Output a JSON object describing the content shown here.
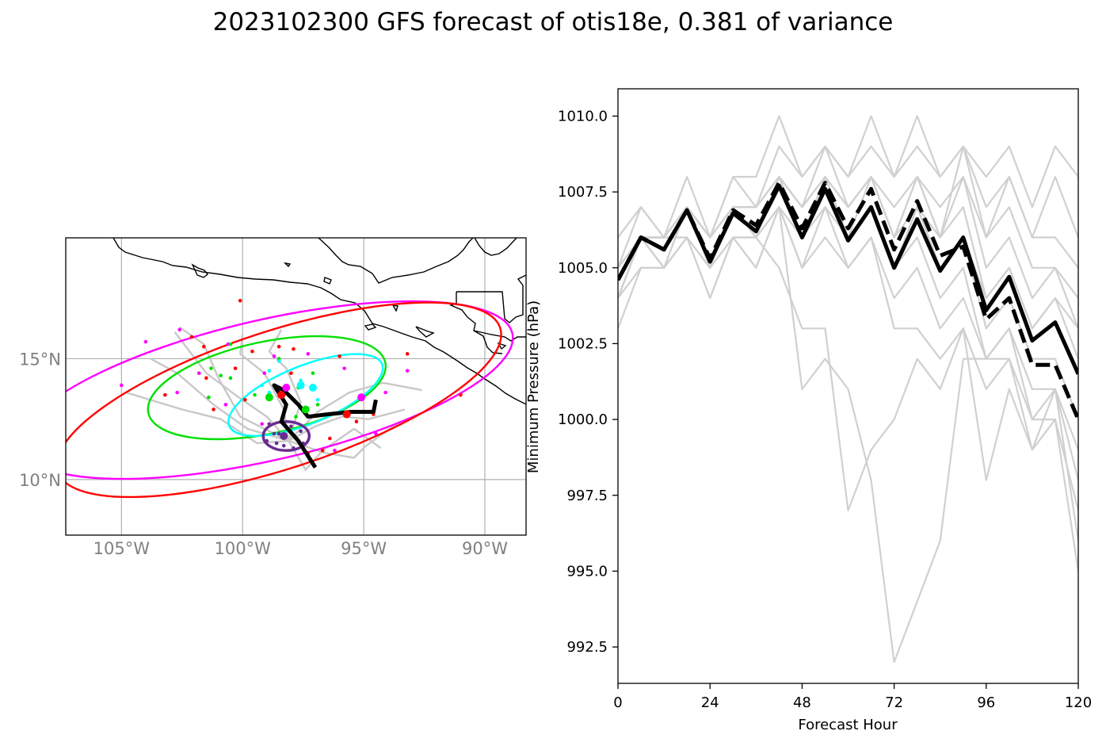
{
  "title": "2023102300 GFS forecast of otis18e, 0.381 of variance",
  "chart_data": [
    {
      "type": "map",
      "lon_range": [
        -107.3,
        -88.3
      ],
      "lat_range": [
        7.7,
        20.0
      ],
      "lat_ticks": [
        {
          "value": 15,
          "label": "15°N"
        },
        {
          "value": 10,
          "label": "10°N"
        }
      ],
      "lon_ticks": [
        {
          "value": -105,
          "label": "105°W"
        },
        {
          "value": -100,
          "label": "100°W"
        },
        {
          "value": -95,
          "label": "95°W"
        },
        {
          "value": -90,
          "label": "90°W"
        }
      ],
      "gridlines": true,
      "colors": {
        "red": "#ff0000",
        "magenta": "#ff00ff",
        "green": "#00e000",
        "cyan": "#00ffff",
        "purple": "#6a2c91",
        "track": "#000000",
        "members": "#c8c8c8"
      },
      "ellipses": [
        {
          "color": "magenta",
          "center": [
            -99.0,
            13.7
          ],
          "rx_deg": 10.4,
          "ry_deg": 2.9,
          "angle_deg": -13
        },
        {
          "color": "red",
          "center": [
            -98.5,
            13.3
          ],
          "rx_deg": 9.6,
          "ry_deg": 2.85,
          "angle_deg": -18
        },
        {
          "color": "green",
          "center": [
            -99.0,
            13.8
          ],
          "rx_deg": 5.0,
          "ry_deg": 1.9,
          "angle_deg": -12
        },
        {
          "color": "cyan",
          "center": [
            -97.4,
            13.5
          ],
          "rx_deg": 3.4,
          "ry_deg": 1.2,
          "angle_deg": -22
        },
        {
          "color": "purple",
          "center": [
            -98.2,
            11.8
          ],
          "rx_deg": 0.95,
          "ry_deg": 0.6,
          "angle_deg": 0
        }
      ],
      "mean_track": [
        [
          -97.0,
          10.5
        ],
        [
          -97.7,
          11.6
        ],
        [
          -98.4,
          12.4
        ],
        [
          -98.2,
          13.1
        ],
        [
          -98.7,
          13.9
        ],
        [
          -98.3,
          13.7
        ],
        [
          -97.7,
          13.1
        ],
        [
          -97.3,
          12.6
        ],
        [
          -96.5,
          12.7
        ],
        [
          -95.5,
          12.8
        ],
        [
          -94.6,
          12.8
        ],
        [
          -94.5,
          13.3
        ]
      ],
      "member_tracks": [
        [
          [
            -98.1,
            11.6
          ],
          [
            -99.8,
            12.1
          ],
          [
            -101.2,
            13.1
          ],
          [
            -102.7,
            14.4
          ],
          [
            -103.8,
            15.0
          ]
        ],
        [
          [
            -98.1,
            11.6
          ],
          [
            -99.0,
            12.6
          ],
          [
            -100.3,
            13.5
          ],
          [
            -101.5,
            14.4
          ],
          [
            -102.8,
            16.1
          ]
        ],
        [
          [
            -98.1,
            11.6
          ],
          [
            -97.0,
            12.2
          ],
          [
            -95.9,
            12.6
          ],
          [
            -94.8,
            12.5
          ],
          [
            -93.3,
            12.9
          ]
        ],
        [
          [
            -98.1,
            11.6
          ],
          [
            -96.9,
            12.8
          ],
          [
            -95.6,
            13.6
          ],
          [
            -94.2,
            14.0
          ],
          [
            -92.6,
            13.7
          ]
        ],
        [
          [
            -98.1,
            11.6
          ],
          [
            -98.3,
            12.9
          ],
          [
            -99.1,
            14.4
          ],
          [
            -100.1,
            15.2
          ],
          [
            -100.0,
            16.0
          ]
        ],
        [
          [
            -98.1,
            11.6
          ],
          [
            -97.4,
            10.4
          ],
          [
            -96.7,
            11.2
          ],
          [
            -95.4,
            12.1
          ],
          [
            -94.3,
            11.3
          ]
        ],
        [
          [
            -98.1,
            11.6
          ],
          [
            -99.4,
            11.5
          ],
          [
            -100.9,
            12.5
          ],
          [
            -102.5,
            12.9
          ],
          [
            -104.8,
            13.6
          ]
        ],
        [
          [
            -98.1,
            11.6
          ],
          [
            -97.6,
            13.2
          ],
          [
            -98.2,
            14.6
          ],
          [
            -98.9,
            15.3
          ],
          [
            -98.4,
            16.2
          ]
        ],
        [
          [
            -98.1,
            11.6
          ],
          [
            -96.6,
            11.1
          ],
          [
            -95.4,
            10.9
          ],
          [
            -94.9,
            11.4
          ],
          [
            -93.5,
            12.4
          ]
        ],
        [
          [
            -98.1,
            11.6
          ],
          [
            -100.1,
            12.6
          ],
          [
            -101.0,
            14.2
          ],
          [
            -101.6,
            15.6
          ],
          [
            -102.6,
            16.3
          ]
        ]
      ],
      "points": {
        "red": [
          [
            -100.1,
            17.4
          ],
          [
            -101.6,
            15.5
          ],
          [
            -102.1,
            15.9
          ],
          [
            -99.6,
            15.3
          ],
          [
            -98.5,
            15.5
          ],
          [
            -97.9,
            15.4
          ],
          [
            -96.0,
            15.1
          ],
          [
            -93.2,
            15.2
          ],
          [
            -91.0,
            13.5
          ],
          [
            -94.6,
            12.7
          ],
          [
            -95.7,
            12.8
          ],
          [
            -96.7,
            11.2
          ],
          [
            -99.9,
            13.3
          ],
          [
            -101.2,
            12.9
          ],
          [
            -103.2,
            13.5
          ],
          [
            -101.5,
            14.2
          ],
          [
            -98.0,
            14.4
          ],
          [
            -96.4,
            11.7
          ],
          [
            -95.3,
            12.4
          ],
          [
            -98.3,
            13.5
          ],
          [
            -100.3,
            14.6
          ],
          [
            -97.3,
            11.1
          ]
        ],
        "magenta": [
          [
            -104.0,
            15.7
          ],
          [
            -102.6,
            16.2
          ],
          [
            -105.0,
            13.9
          ],
          [
            -101.8,
            14.4
          ],
          [
            -100.6,
            15.6
          ],
          [
            -98.7,
            15.1
          ],
          [
            -95.8,
            14.6
          ],
          [
            -94.1,
            13.6
          ],
          [
            -93.2,
            14.5
          ],
          [
            -96.2,
            11.2
          ],
          [
            -99.2,
            12.3
          ],
          [
            -100.7,
            13.1
          ],
          [
            -102.7,
            13.6
          ],
          [
            -94.8,
            12.8
          ],
          [
            -98.2,
            13.8
          ],
          [
            -97.3,
            15.2
          ],
          [
            -99.1,
            14.4
          ],
          [
            -94.5,
            11.9
          ],
          [
            -95.1,
            13.4
          ]
        ],
        "green": [
          [
            -101.3,
            14.6
          ],
          [
            -100.9,
            14.3
          ],
          [
            -101.4,
            13.4
          ],
          [
            -100.5,
            15.6
          ],
          [
            -98.5,
            15.0
          ],
          [
            -97.8,
            12.6
          ],
          [
            -96.9,
            13.1
          ],
          [
            -97.1,
            14.4
          ],
          [
            -99.5,
            13.5
          ],
          [
            -100.5,
            14.2
          ],
          [
            -97.7,
            13.8
          ],
          [
            -98.9,
            13.4
          ],
          [
            -97.4,
            12.9
          ]
        ],
        "cyan": [
          [
            -98.9,
            14.5
          ],
          [
            -98.4,
            13.4
          ],
          [
            -97.6,
            13.9
          ],
          [
            -97.1,
            13.8
          ],
          [
            -98.9,
            13.6
          ],
          [
            -97.6,
            14.1
          ],
          [
            -96.9,
            13.3
          ],
          [
            -98.5,
            14.9
          ],
          [
            -99.2,
            13.9
          ]
        ],
        "purple": [
          [
            -98.6,
            11.5
          ],
          [
            -97.8,
            11.7
          ],
          [
            -98.0,
            12.2
          ],
          [
            -98.7,
            11.9
          ],
          [
            -99.0,
            11.6
          ],
          [
            -97.6,
            12.0
          ],
          [
            -98.3,
            11.4
          ],
          [
            -98.9,
            12.3
          ],
          [
            -97.9,
            11.3
          ],
          [
            -98.5,
            11.9
          ],
          [
            -97.5,
            11.5
          ]
        ],
        "mean_positions": [
          {
            "color": "red",
            "lon": -98.4,
            "lat": 13.5
          },
          {
            "color": "red",
            "lon": -95.7,
            "lat": 12.7
          },
          {
            "color": "magenta",
            "lon": -98.2,
            "lat": 13.8
          },
          {
            "color": "magenta",
            "lon": -95.1,
            "lat": 13.4
          },
          {
            "color": "green",
            "lon": -98.9,
            "lat": 13.4
          },
          {
            "color": "green",
            "lon": -97.4,
            "lat": 12.9
          },
          {
            "color": "cyan",
            "lon": -97.6,
            "lat": 13.9
          },
          {
            "color": "cyan",
            "lon": -97.1,
            "lat": 13.8
          },
          {
            "color": "purple",
            "lon": -98.3,
            "lat": 11.8
          }
        ]
      }
    },
    {
      "type": "line",
      "xlabel": "Forecast Hour",
      "ylabel": "Minimum Pressure (hPa)",
      "xlim": [
        0,
        120
      ],
      "ylim": [
        991.3,
        1010.9
      ],
      "xticks": [
        0,
        24,
        48,
        72,
        96,
        120
      ],
      "yticks": [
        992.5,
        995.0,
        997.5,
        1000.0,
        1002.5,
        1005.0,
        1007.5,
        1010.0
      ],
      "x": [
        0,
        6,
        12,
        18,
        24,
        30,
        36,
        42,
        48,
        54,
        60,
        66,
        72,
        78,
        84,
        90,
        96,
        102,
        108,
        114,
        120
      ],
      "series": [
        {
          "style": "bold-solid",
          "values": [
            1004.6,
            1006.0,
            1005.6,
            1006.9,
            1005.2,
            1006.8,
            1006.2,
            1007.7,
            1006.0,
            1007.6,
            1005.9,
            1007.0,
            1005.0,
            1006.6,
            1004.9,
            1006.0,
            1003.6,
            1004.7,
            1002.6,
            1003.2,
            1001.5
          ]
        },
        {
          "style": "bold-dashed",
          "values": [
            1004.6,
            1006.0,
            1005.6,
            1006.9,
            1005.3,
            1006.9,
            1006.4,
            1007.8,
            1006.3,
            1007.8,
            1006.3,
            1007.6,
            1005.6,
            1007.2,
            1005.4,
            1005.7,
            1003.3,
            1004.0,
            1001.8,
            1001.8,
            1000.0
          ]
        },
        {
          "style": "member",
          "values": [
            1005.0,
            1006.0,
            1006.0,
            1007.0,
            1006.0,
            1007.0,
            1007.0,
            1008.0,
            1007.0,
            1008.0,
            1007.0,
            1008.0,
            1006.0,
            1008.0,
            1006.0,
            1007.0,
            1004.0,
            1005.0,
            1003.0,
            1004.0,
            1002.0
          ]
        },
        {
          "style": "member",
          "values": [
            1004.0,
            1006.0,
            1006.0,
            1007.0,
            1005.0,
            1007.0,
            1006.0,
            1008.0,
            1006.0,
            1008.0,
            1006.0,
            1007.0,
            1005.0,
            1007.0,
            1005.0,
            1006.0,
            1003.0,
            1004.0,
            1002.0,
            1002.0,
            1000.0
          ]
        },
        {
          "style": "member",
          "values": [
            1005.0,
            1006.0,
            1005.0,
            1007.0,
            1005.0,
            1007.0,
            1006.0,
            1008.0,
            1006.0,
            1008.0,
            1006.0,
            1008.0,
            1006.0,
            1008.0,
            1006.0,
            1008.0,
            1006.0,
            1007.0,
            1005.0,
            1005.0,
            1004.0
          ]
        },
        {
          "style": "member",
          "values": [
            1004.0,
            1006.0,
            1006.0,
            1006.0,
            1005.0,
            1006.0,
            1006.0,
            1007.0,
            1006.0,
            1007.0,
            1006.0,
            1007.0,
            1005.0,
            1007.0,
            1005.0,
            1006.0,
            1004.0,
            1005.0,
            1003.0,
            1004.0,
            1003.0
          ]
        },
        {
          "style": "member",
          "values": [
            1005.0,
            1007.0,
            1006.0,
            1007.0,
            1006.0,
            1008.0,
            1007.0,
            1009.0,
            1008.0,
            1009.0,
            1008.0,
            1009.0,
            1008.0,
            1009.0,
            1008.0,
            1009.0,
            1007.0,
            1008.0,
            1006.0,
            1006.0,
            1005.0
          ]
        },
        {
          "style": "member",
          "values": [
            1006.0,
            1007.0,
            1006.0,
            1008.0,
            1006.0,
            1008.0,
            1008.0,
            1010.0,
            1008.0,
            1009.0,
            1008.0,
            1010.0,
            1008.0,
            1010.0,
            1008.0,
            1009.0,
            1008.0,
            1009.0,
            1007.0,
            1009.0,
            1008.0
          ]
        },
        {
          "style": "member",
          "values": [
            1004.0,
            1005.0,
            1005.0,
            1006.0,
            1004.0,
            1006.0,
            1005.0,
            1007.0,
            1005.0,
            1006.0,
            1005.0,
            1006.0,
            1003.0,
            1003.0,
            1002.0,
            1003.0,
            1001.0,
            1002.0,
            1000.0,
            1001.0,
            999.0
          ]
        },
        {
          "style": "member",
          "values": [
            1003.0,
            1005.0,
            1005.0,
            1006.0,
            1004.0,
            1006.0,
            1006.0,
            1005.0,
            1003.0,
            1003.0,
            997.0,
            999.0,
            1000.0,
            1002.0,
            1001.0,
            1003.0,
            998.0,
            1001.0,
            999.0,
            1001.0,
            998.0
          ]
        },
        {
          "style": "member",
          "values": [
            1004.0,
            1006.0,
            1006.0,
            1007.0,
            1005.0,
            1007.0,
            1006.0,
            1007.0,
            1001.0,
            1002.0,
            1001.0,
            998.0,
            992.0,
            994.0,
            996.0,
            1002.0,
            1002.0,
            1003.0,
            1001.0,
            1001.0,
            996.0
          ]
        },
        {
          "style": "member",
          "values": [
            1005.0,
            1006.0,
            1006.0,
            1007.0,
            1006.0,
            1007.0,
            1007.0,
            1008.0,
            1007.0,
            1009.0,
            1007.0,
            1008.0,
            1007.0,
            1008.0,
            1007.0,
            1008.0,
            1005.0,
            1006.0,
            1004.0,
            1005.0,
            1003.0
          ]
        },
        {
          "style": "member",
          "values": [
            1004.0,
            1006.0,
            1005.0,
            1007.0,
            1005.0,
            1007.0,
            1006.0,
            1008.0,
            1006.0,
            1008.0,
            1006.0,
            1007.0,
            1005.0,
            1006.0,
            1004.0,
            1005.0,
            1002.0,
            1003.0,
            1000.0,
            1000.0,
            995.0
          ]
        },
        {
          "style": "member",
          "values": [
            1005.0,
            1006.0,
            1006.0,
            1007.0,
            1006.0,
            1007.0,
            1007.0,
            1008.0,
            1007.0,
            1008.0,
            1007.0,
            1008.0,
            1006.0,
            1007.0,
            1006.0,
            1009.0,
            1006.0,
            1008.0,
            1006.0,
            1008.0,
            1006.0
          ]
        },
        {
          "style": "member",
          "values": [
            1004.0,
            1006.0,
            1005.0,
            1006.0,
            1005.0,
            1006.0,
            1005.0,
            1007.0,
            1005.0,
            1007.0,
            1005.0,
            1006.0,
            1004.0,
            1005.0,
            1003.0,
            1004.0,
            1002.0,
            1002.0,
            999.0,
            1000.0,
            997.0
          ]
        }
      ]
    }
  ]
}
